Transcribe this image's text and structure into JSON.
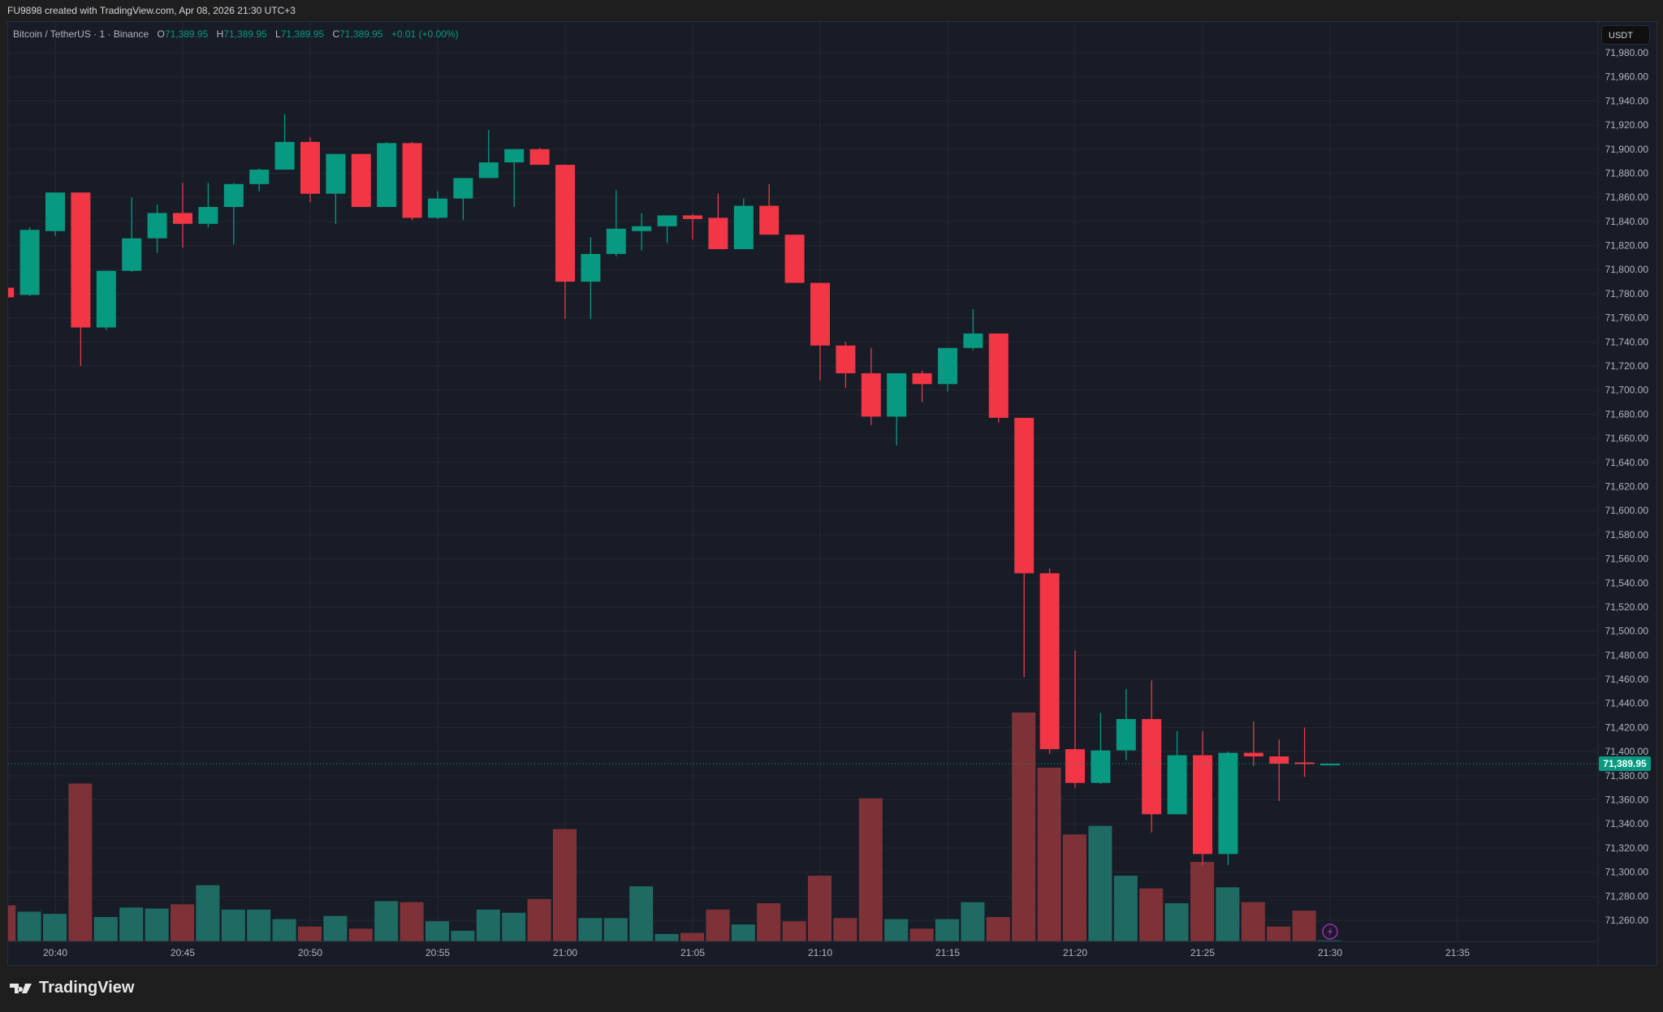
{
  "caption": "FU9898 created with TradingView.com, Apr 08, 2026 21:30 UTC+3",
  "legend": {
    "symbol": "Bitcoin / TetherUS · 1 · Binance",
    "o_label": "O",
    "o": "71,389.95",
    "h_label": "H",
    "h": "71,389.95",
    "l_label": "L",
    "l": "71,389.95",
    "c_label": "C",
    "c": "71,389.95",
    "change": "+0.01 (+0.00%)"
  },
  "currency": "USDT",
  "brand": "TradingView",
  "colors": {
    "up": "#089981",
    "down": "#f23645",
    "up_vol": "#1f6b64",
    "down_vol": "#7e3238",
    "grid": "#232733",
    "bg": "#181c27"
  },
  "chart_data": {
    "type": "candlestick",
    "title": "Bitcoin / TetherUS · 1 · Binance",
    "ylim": [
      71240,
      71990
    ],
    "y_ticks": [
      "71,980.00",
      "71,960.00",
      "71,940.00",
      "71,920.00",
      "71,900.00",
      "71,880.00",
      "71,860.00",
      "71,840.00",
      "71,820.00",
      "71,800.00",
      "71,780.00",
      "71,760.00",
      "71,740.00",
      "71,720.00",
      "71,700.00",
      "71,680.00",
      "71,660.00",
      "71,640.00",
      "71,620.00",
      "71,600.00",
      "71,580.00",
      "71,560.00",
      "71,540.00",
      "71,520.00",
      "71,500.00",
      "71,480.00",
      "71,460.00",
      "71,440.00",
      "71,420.00",
      "71,400.00",
      "71,380.00",
      "71,360.00",
      "71,340.00",
      "71,320.00",
      "71,300.00",
      "71,280.00",
      "71,260.00"
    ],
    "x_ticks": [
      "20:40",
      "20:45",
      "20:50",
      "20:55",
      "21:00",
      "21:05",
      "21:10",
      "21:15",
      "21:20",
      "21:25",
      "21:30",
      "21:35"
    ],
    "last_price": 71389.95,
    "last_price_label": "71,389.95",
    "candles": [
      {
        "t": "20:38",
        "o": 71785,
        "h": 71787,
        "l": 71775,
        "c": 71777,
        "v": 34
      },
      {
        "t": "20:39",
        "o": 71779,
        "h": 71835,
        "l": 71778,
        "c": 71833,
        "v": 28
      },
      {
        "t": "20:40",
        "o": 71832,
        "h": 71864,
        "l": 71828,
        "c": 71864,
        "v": 26
      },
      {
        "t": "20:41",
        "o": 71864,
        "h": 71864,
        "l": 71720,
        "c": 71752,
        "v": 149
      },
      {
        "t": "20:42",
        "o": 71752,
        "h": 71799,
        "l": 71750,
        "c": 71799,
        "v": 23
      },
      {
        "t": "20:43",
        "o": 71799,
        "h": 71860,
        "l": 71798,
        "c": 71826,
        "v": 32
      },
      {
        "t": "20:44",
        "o": 71826,
        "h": 71854,
        "l": 71814,
        "c": 71847,
        "v": 31
      },
      {
        "t": "20:45",
        "o": 71847,
        "h": 71872,
        "l": 71818,
        "c": 71838,
        "v": 35
      },
      {
        "t": "20:46",
        "o": 71838,
        "h": 71872,
        "l": 71835,
        "c": 71852,
        "v": 53
      },
      {
        "t": "20:47",
        "o": 71852,
        "h": 71872,
        "l": 71821,
        "c": 71871,
        "v": 30
      },
      {
        "t": "20:48",
        "o": 71871,
        "h": 71884,
        "l": 71865,
        "c": 71883,
        "v": 30
      },
      {
        "t": "20:49",
        "o": 71883,
        "h": 71929,
        "l": 71883,
        "c": 71906,
        "v": 21
      },
      {
        "t": "20:50",
        "o": 71906,
        "h": 71910,
        "l": 71856,
        "c": 71863,
        "v": 14
      },
      {
        "t": "20:51",
        "o": 71863,
        "h": 71896,
        "l": 71838,
        "c": 71896,
        "v": 24
      },
      {
        "t": "20:52",
        "o": 71896,
        "h": 71896,
        "l": 71852,
        "c": 71852,
        "v": 12
      },
      {
        "t": "20:53",
        "o": 71852,
        "h": 71906,
        "l": 71852,
        "c": 71905,
        "v": 38
      },
      {
        "t": "20:54",
        "o": 71905,
        "h": 71906,
        "l": 71841,
        "c": 71843,
        "v": 37
      },
      {
        "t": "20:55",
        "o": 71843,
        "h": 71865,
        "l": 71842,
        "c": 71859,
        "v": 19
      },
      {
        "t": "20:56",
        "o": 71859,
        "h": 71876,
        "l": 71841,
        "c": 71876,
        "v": 10
      },
      {
        "t": "20:57",
        "o": 71876,
        "h": 71916,
        "l": 71876,
        "c": 71889,
        "v": 30
      },
      {
        "t": "20:58",
        "o": 71889,
        "h": 71900,
        "l": 71852,
        "c": 71900,
        "v": 27
      },
      {
        "t": "20:59",
        "o": 71900,
        "h": 71901,
        "l": 71887,
        "c": 71887,
        "v": 40
      },
      {
        "t": "21:00",
        "o": 71887,
        "h": 71887,
        "l": 71759,
        "c": 71790,
        "v": 106
      },
      {
        "t": "21:01",
        "o": 71790,
        "h": 71827,
        "l": 71759,
        "c": 71813,
        "v": 22
      },
      {
        "t": "21:02",
        "o": 71813,
        "h": 71866,
        "l": 71811,
        "c": 71834,
        "v": 22
      },
      {
        "t": "21:03",
        "o": 71832,
        "h": 71847,
        "l": 71816,
        "c": 71836,
        "v": 52
      },
      {
        "t": "21:04",
        "o": 71836,
        "h": 71845,
        "l": 71822,
        "c": 71845,
        "v": 7
      },
      {
        "t": "21:05",
        "o": 71845,
        "h": 71846,
        "l": 71825,
        "c": 71842,
        "v": 8
      },
      {
        "t": "21:06",
        "o": 71843,
        "h": 71863,
        "l": 71817,
        "c": 71817,
        "v": 30
      },
      {
        "t": "21:07",
        "o": 71817,
        "h": 71859,
        "l": 71817,
        "c": 71853,
        "v": 16
      },
      {
        "t": "21:08",
        "o": 71853,
        "h": 71871,
        "l": 71829,
        "c": 71829,
        "v": 36
      },
      {
        "t": "21:09",
        "o": 71829,
        "h": 71829,
        "l": 71789,
        "c": 71789,
        "v": 19
      },
      {
        "t": "21:10",
        "o": 71789,
        "h": 71789,
        "l": 71708,
        "c": 71737,
        "v": 62
      },
      {
        "t": "21:11",
        "o": 71737,
        "h": 71740,
        "l": 71702,
        "c": 71714,
        "v": 22
      },
      {
        "t": "21:12",
        "o": 71714,
        "h": 71735,
        "l": 71671,
        "c": 71678,
        "v": 135
      },
      {
        "t": "21:13",
        "o": 71678,
        "h": 71714,
        "l": 71654,
        "c": 71714,
        "v": 21
      },
      {
        "t": "21:14",
        "o": 71714,
        "h": 71716,
        "l": 71690,
        "c": 71705,
        "v": 12
      },
      {
        "t": "21:15",
        "o": 71705,
        "h": 71735,
        "l": 71699,
        "c": 71735,
        "v": 21
      },
      {
        "t": "21:16",
        "o": 71735,
        "h": 71767,
        "l": 71733,
        "c": 71747,
        "v": 37
      },
      {
        "t": "21:17",
        "o": 71747,
        "h": 71747,
        "l": 71673,
        "c": 71677,
        "v": 23
      },
      {
        "t": "21:18",
        "o": 71677,
        "h": 71677,
        "l": 71462,
        "c": 71548,
        "v": 216
      },
      {
        "t": "21:19",
        "o": 71548,
        "h": 71552,
        "l": 71398,
        "c": 71402,
        "v": 164
      },
      {
        "t": "21:20",
        "o": 71402,
        "h": 71484,
        "l": 71370,
        "c": 71374,
        "v": 101
      },
      {
        "t": "21:21",
        "o": 71374,
        "h": 71432,
        "l": 71373,
        "c": 71401,
        "v": 109
      },
      {
        "t": "21:22",
        "o": 71401,
        "h": 71452,
        "l": 71393,
        "c": 71427,
        "v": 62
      },
      {
        "t": "21:23",
        "o": 71427,
        "h": 71459,
        "l": 71333,
        "c": 71348,
        "v": 50
      },
      {
        "t": "21:24",
        "o": 71348,
        "h": 71417,
        "l": 71348,
        "c": 71397,
        "v": 36
      },
      {
        "t": "21:25",
        "o": 71397,
        "h": 71417,
        "l": 71306,
        "c": 71315,
        "v": 75
      },
      {
        "t": "21:26",
        "o": 71315,
        "h": 71400,
        "l": 71306,
        "c": 71399,
        "v": 51
      },
      {
        "t": "21:27",
        "o": 71399,
        "h": 71425,
        "l": 71388,
        "c": 71396,
        "v": 37
      },
      {
        "t": "21:28",
        "o": 71396,
        "h": 71410,
        "l": 71359,
        "c": 71390,
        "v": 14
      },
      {
        "t": "21:29",
        "o": 71391,
        "h": 71420,
        "l": 71379,
        "c": 71390,
        "v": 29
      },
      {
        "t": "21:30",
        "o": 71389.95,
        "h": 71389.95,
        "l": 71389.95,
        "c": 71389.95,
        "v": 1
      }
    ]
  }
}
